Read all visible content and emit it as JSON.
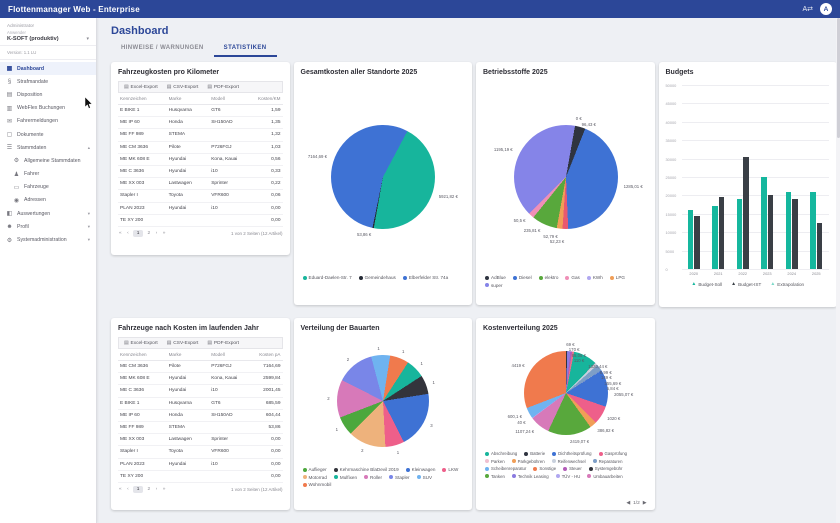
{
  "app": {
    "title": "Flottenmanager Web - Enterprise"
  },
  "topbar": {
    "translate_icon": "translate-icon",
    "avatar_letter": "A"
  },
  "sidebar": {
    "role_label": "Administrator",
    "user_label": "Anwender",
    "tenant": "K-SOFT (produktiv)",
    "version": "Version: 1.1 LU",
    "items": [
      {
        "label": "Dashboard",
        "icon": "dashboard",
        "active": true
      },
      {
        "label": "Strafmandate",
        "icon": "gavel"
      },
      {
        "label": "Disposition",
        "icon": "calendar"
      },
      {
        "label": "WebFlex Buchungen",
        "icon": "book"
      },
      {
        "label": "Fahrermeldungen",
        "icon": "message"
      },
      {
        "label": "Dokumente",
        "icon": "document"
      },
      {
        "label": "Stammdaten",
        "icon": "list",
        "expandable": true,
        "expanded": true
      },
      {
        "label": "Allgemeine Stammdaten",
        "icon": "gear",
        "child": true
      },
      {
        "label": "Fahrer",
        "icon": "person",
        "child": true
      },
      {
        "label": "Fahrzeuge",
        "icon": "car",
        "child": true
      },
      {
        "label": "Adressen",
        "icon": "pin",
        "child": true
      },
      {
        "label": "Auswertungen",
        "icon": "chart",
        "expandable": true
      },
      {
        "label": "Profil",
        "icon": "profile",
        "expandable": true
      },
      {
        "label": "Systemadministration",
        "icon": "gear",
        "expandable": true
      }
    ]
  },
  "page": {
    "title": "Dashboard",
    "tabs": [
      {
        "label": "HINWEISE / WARNUNGEN",
        "active": false
      },
      {
        "label": "STATISTIKEN",
        "active": true
      }
    ]
  },
  "export_buttons": [
    "Excel-Export",
    "CSV-Export",
    "PDF-Export"
  ],
  "tables": [
    {
      "title": "Fahrzeugkosten pro Kilometer",
      "columns": [
        "Kennzeichen",
        "Marke",
        "Modell",
        "Kosten/KM"
      ],
      "rows": [
        [
          "E BIKE 1",
          "Husqvarna",
          "GT6",
          "1,59"
        ],
        [
          "ME IP 60",
          "Honda",
          "SH150AD",
          "1,35"
        ],
        [
          "ME FF 989",
          "STEMA",
          "",
          "1,32"
        ],
        [
          "ME CM 3636",
          "Pilote",
          "P726FGJ",
          "1,03"
        ],
        [
          "ME MK 608 E",
          "Hyundai",
          "Kona, Kauai",
          "0,56"
        ],
        [
          "ME C 3636",
          "Hyundai",
          "i10",
          "0,33"
        ],
        [
          "ME XX 003",
          "Lastwagen",
          "Sprinter",
          "0,22"
        ],
        [
          "Stapler I",
          "Toyota",
          "VFR600",
          "0,06"
        ],
        [
          "PLAN 2023",
          "Hyundai",
          "i10",
          "0,00"
        ],
        [
          "TE XY 200",
          "",
          "",
          "0,00"
        ]
      ],
      "pagination": {
        "first": "«",
        "prev": "‹",
        "pages": [
          "1",
          "2"
        ],
        "current": "1",
        "next": "›",
        "last": "»",
        "summary": "1 von 2 Seiten (12 Artikel)"
      }
    },
    {
      "title": "Fahrzeuge nach Kosten im laufenden Jahr",
      "columns": [
        "Kennzeichen",
        "Marke",
        "Modell",
        "Kosten pA"
      ],
      "rows": [
        [
          "ME CM 3636",
          "Pilote",
          "P726FGJ",
          "7164,69"
        ],
        [
          "ME MK 608 E",
          "Hyundai",
          "Kona, Kauai",
          "2599,84"
        ],
        [
          "ME C 3636",
          "Hyundai",
          "i10",
          "2001,45"
        ],
        [
          "E BIKE 1",
          "Husqvarna",
          "GT6",
          "685,59"
        ],
        [
          "ME IP 60",
          "Honda",
          "SH150AD",
          "604,44"
        ],
        [
          "ME FF 989",
          "STEMA",
          "",
          "53,86"
        ],
        [
          "ME XX 003",
          "Lastwagen",
          "Sprinter",
          "0,00"
        ],
        [
          "Stapler I",
          "Toyota",
          "VFR600",
          "0,00"
        ],
        [
          "PLAN 2023",
          "Hyundai",
          "i10",
          "0,00"
        ],
        [
          "TE XY 200",
          "",
          "",
          "0,00"
        ]
      ],
      "pagination": {
        "first": "«",
        "prev": "‹",
        "pages": [
          "1",
          "2"
        ],
        "current": "1",
        "next": "›",
        "last": "»",
        "summary": "1 von 2 Seiten (12 Artikel)"
      }
    }
  ],
  "chart_data": [
    {
      "type": "pie",
      "title": "Gesamtkosten aller Standorte 2025",
      "start_angle": 28,
      "slices": [
        {
          "label": "5921,82 €",
          "value": 5921.82,
          "color": "#17b59c"
        },
        {
          "label": "53,86 €",
          "value": 53.86,
          "color": "#262b36"
        },
        {
          "label": "7164,69 €",
          "value": 7164.69,
          "color": "#3e72d4"
        }
      ],
      "legend": [
        {
          "name": "Eduard-Daelen-Str. 7",
          "color": "#17b59c"
        },
        {
          "name": "Gemeindehaus",
          "color": "#262b36"
        },
        {
          "name": "Elberfelder Str. 74a",
          "color": "#3e72d4"
        }
      ]
    },
    {
      "type": "pie",
      "title": "Betriebsstoffe 2025",
      "start_angle": 10,
      "slices": [
        {
          "label": "0 €",
          "value": 0,
          "color": "#b0a7f0"
        },
        {
          "label": "96,43 €",
          "value": 96.43,
          "color": "#2f3440"
        },
        {
          "label": "1285,01 €",
          "value": 1285.01,
          "color": "#3e72d4"
        },
        {
          "label": "52,23 €",
          "value": 52.23,
          "color": "#e8596f"
        },
        {
          "label": "52,79 €",
          "value": 52.79,
          "color": "#f09e57"
        },
        {
          "label": "235,81 €",
          "value": 235.81,
          "color": "#58a83c"
        },
        {
          "label": "50,5 €",
          "value": 50.5,
          "color": "#ef8fb7"
        },
        {
          "label": "1195,19 €",
          "value": 1195.19,
          "color": "#8584e8"
        }
      ],
      "legend": [
        {
          "name": "AdBlue",
          "color": "#2f3440"
        },
        {
          "name": "Diesel",
          "color": "#3e72d4"
        },
        {
          "name": "elektro",
          "color": "#58a83c"
        },
        {
          "name": "Gas",
          "color": "#ef8fb7"
        },
        {
          "name": "KWh",
          "color": "#b0a7f0"
        },
        {
          "name": "LPG",
          "color": "#f09e57"
        },
        {
          "name": "super",
          "color": "#8584e8"
        }
      ]
    },
    {
      "type": "bar",
      "title": "Budgets",
      "categories": [
        "2020",
        "2021",
        "2022",
        "2023",
        "2024",
        "2025"
      ],
      "series": [
        {
          "name": "Budget-Soll",
          "color": "#15b79e",
          "values": [
            16000,
            17000,
            19000,
            25000,
            21000,
            21000
          ]
        },
        {
          "name": "Budget-IST",
          "color": "#3a3f46",
          "values": [
            14500,
            19500,
            30500,
            20000,
            19000,
            12500
          ]
        }
      ],
      "legend_extra": {
        "name": "Extrapolation",
        "color": "#7cd9c9"
      },
      "ylim": [
        0,
        50000
      ],
      "ytick_step": 5000
    },
    {
      "type": "pie",
      "title": "Verteilung der Bauarten",
      "start_angle": -15,
      "slices": [
        {
          "label": "1",
          "value": 1,
          "color": "#6fb3f0"
        },
        {
          "label": "1",
          "value": 1,
          "color": "#f07a4d"
        },
        {
          "label": "1",
          "value": 1,
          "color": "#17b59c"
        },
        {
          "label": "1",
          "value": 1,
          "color": "#33343c"
        },
        {
          "label": "3",
          "value": 3,
          "color": "#3e72d4"
        },
        {
          "label": "1",
          "value": 1,
          "color": "#ee5f8a"
        },
        {
          "label": "2",
          "value": 2,
          "color": "#eeb27c"
        },
        {
          "label": "1",
          "value": 1,
          "color": "#4ca83d"
        },
        {
          "label": "2",
          "value": 2,
          "color": "#d779b9"
        },
        {
          "label": "2",
          "value": 2,
          "color": "#7986e8"
        }
      ],
      "legend": [
        {
          "name": "Auflieger",
          "color": "#4ca83d"
        },
        {
          "name": "Kehrmaschine BlaDevil 2019",
          "color": "#33343c"
        },
        {
          "name": "Kleinwagen",
          "color": "#3e72d4"
        },
        {
          "name": "LKW",
          "color": "#ee5f8a"
        },
        {
          "name": "Motorrad",
          "color": "#eeb27c"
        },
        {
          "name": "Mulfixen",
          "color": "#17b59c"
        },
        {
          "name": "Roller",
          "color": "#d779b9"
        },
        {
          "name": "Stapler",
          "color": "#7986e8"
        },
        {
          "name": "SUV",
          "color": "#6fb3f0"
        },
        {
          "name": "Wohnmobil",
          "color": "#f07a4d"
        }
      ]
    },
    {
      "type": "pie",
      "title": "Kostenverteilung 2025",
      "start_angle": 0,
      "slices": [
        {
          "label": "69 €",
          "value": 69,
          "color": "#2f3440"
        },
        {
          "label": "170 €",
          "value": 170,
          "color": "#8a7ae0"
        },
        {
          "label": "95,05 €",
          "value": 95.05,
          "color": "#b35bb8"
        },
        {
          "label": "110 €",
          "value": 110,
          "color": "#e8708c"
        },
        {
          "label": "1320,44 €",
          "value": 1320.44,
          "color": "#17b59c"
        },
        {
          "label": "8,99 €",
          "value": 8.99,
          "color": "#ef8fb7"
        },
        {
          "label": "149 €",
          "value": 149,
          "color": "#c9d1dd"
        },
        {
          "label": "355,69 €",
          "value": 355.69,
          "color": "#7d9ec7"
        },
        {
          "label": "5,84 €",
          "value": 5.84,
          "color": "#f0c0d0"
        },
        {
          "label": "2055,07 €",
          "value": 2055.07,
          "color": "#3e72d4"
        },
        {
          "label": "1020 €",
          "value": 1020,
          "color": "#ee5f8a"
        },
        {
          "label": "386,82 €",
          "value": 386.82,
          "color": "#f09e57"
        },
        {
          "label": "2419,07 €",
          "value": 2419.07,
          "color": "#58a83c"
        },
        {
          "label": "1107,24 €",
          "value": 1107.24,
          "color": "#d779b9"
        },
        {
          "label": "40 €",
          "value": 40,
          "color": "#b0a7f0"
        },
        {
          "label": "600,1 €",
          "value": 600.1,
          "color": "#6fb3f0"
        },
        {
          "label": "4419 €",
          "value": 4419,
          "color": "#f07a4d"
        }
      ],
      "legend": [
        {
          "name": "Abschreibung",
          "color": "#17b59c"
        },
        {
          "name": "Batterie",
          "color": "#2f3440"
        },
        {
          "name": "Dichtheitsprüfung",
          "color": "#3e72d4"
        },
        {
          "name": "Gasprüfung",
          "color": "#ee5f8a"
        },
        {
          "name": "Parken",
          "color": "#f0c0d0"
        },
        {
          "name": "Parkgebühren",
          "color": "#f09e57"
        },
        {
          "name": "Reifenwechsel",
          "color": "#c9d1dd"
        },
        {
          "name": "Reparaturen",
          "color": "#7d9ec7"
        },
        {
          "name": "Scheibenreparatur",
          "color": "#6fb3f0"
        },
        {
          "name": "Sonstige",
          "color": "#f07a4d"
        },
        {
          "name": "Steuer",
          "color": "#b35bb8"
        },
        {
          "name": "Systemgebühr",
          "color": "#33343c"
        },
        {
          "name": "Tanken",
          "color": "#58a83c"
        },
        {
          "name": "Technik Leasing",
          "color": "#8a7ae0"
        },
        {
          "name": "TÜV - HU",
          "color": "#b0a7f0"
        },
        {
          "name": "Umbauarbeiten",
          "color": "#d779b9"
        }
      ],
      "pager": {
        "prev": "◀",
        "label": "1/2",
        "next": "▶"
      }
    }
  ]
}
